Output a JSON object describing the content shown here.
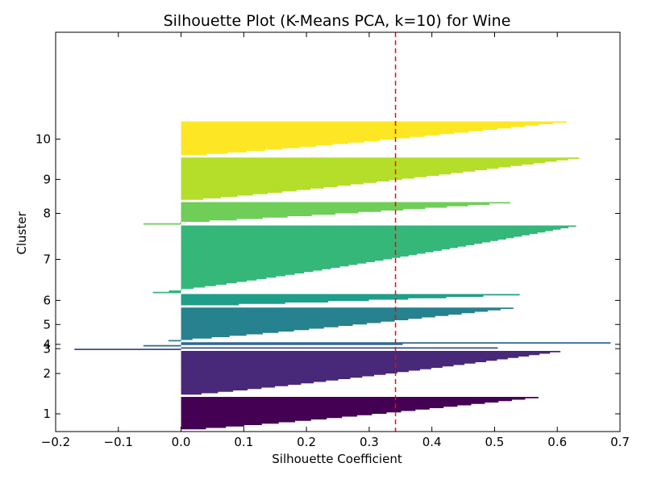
{
  "chart_data": {
    "type": "silhouette",
    "title": "Silhouette Plot (K-Means PCA, k=10) for Wine",
    "xlabel": "Silhouette Coefficient",
    "ylabel": "Cluster",
    "xlim": [
      -0.2,
      0.7
    ],
    "x_ticks": [
      -0.2,
      -0.1,
      0.0,
      0.1,
      0.2,
      0.3,
      0.4,
      0.5,
      0.6,
      0.7
    ],
    "x_tick_labels": [
      "−0.2",
      "−0.1",
      "0.0",
      "0.1",
      "0.2",
      "0.3",
      "0.4",
      "0.5",
      "0.6",
      "0.7"
    ],
    "average_silhouette": 0.342,
    "average_line_color": "#ff0000",
    "clusters": [
      {
        "label": "1",
        "size": 24,
        "max": 0.57,
        "min": 0.0,
        "color": "#440154"
      },
      {
        "label": "2",
        "size": 32,
        "max": 0.605,
        "min": 0.0,
        "color": "#482878"
      },
      {
        "label": "3",
        "size": 2,
        "max": 0.505,
        "min": -0.17,
        "color": "#3e4989"
      },
      {
        "label": "4",
        "size": 3,
        "max": 0.685,
        "min": -0.06,
        "color": "#31688e"
      },
      {
        "label": "5",
        "size": 24,
        "max": 0.53,
        "min": -0.02,
        "color": "#26828e"
      },
      {
        "label": "6",
        "size": 9,
        "max": 0.54,
        "min": 0.0,
        "color": "#1f9e89"
      },
      {
        "label": "7",
        "size": 48,
        "max": 0.63,
        "min": -0.045,
        "color": "#35b779"
      },
      {
        "label": "8",
        "size": 16,
        "max": 0.525,
        "min": -0.06,
        "color": "#6ece58"
      },
      {
        "label": "9",
        "size": 31,
        "max": 0.635,
        "min": 0.0,
        "color": "#b5de2b"
      },
      {
        "label": "10",
        "size": 25,
        "max": 0.615,
        "min": 0.0,
        "color": "#fde725"
      }
    ]
  }
}
